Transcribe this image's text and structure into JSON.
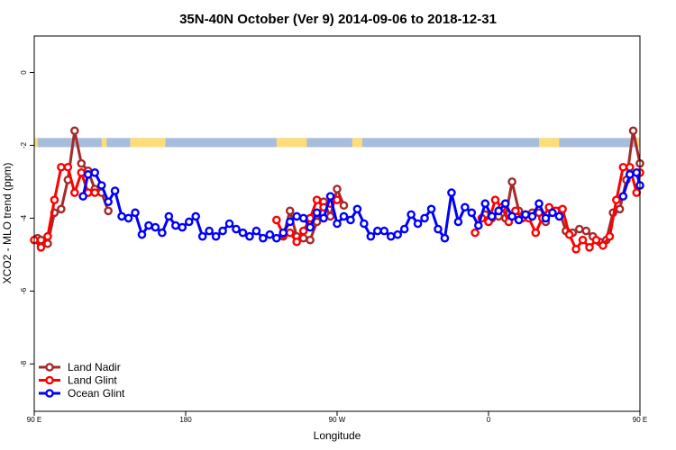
{
  "chart_data": {
    "type": "line",
    "title": "35N-40N October (Ver 9)   2014-09-06 to 2018-12-31",
    "xlabel": "Longitude",
    "ylabel": "XCO2 - MLO trend (ppm)",
    "xlim": [
      90,
      450
    ],
    "ylim": [
      -9.3,
      1
    ],
    "x_ticks": [
      {
        "value": 90,
        "label": "90 E"
      },
      {
        "value": 180,
        "label": "180"
      },
      {
        "value": 270,
        "label": "90 W"
      },
      {
        "value": 360,
        "label": "0"
      },
      {
        "value": 450,
        "label": "90 E"
      },
      {
        "value": 540,
        "label": "180"
      }
    ],
    "y_ticks": [
      {
        "value": 0,
        "label": "0"
      },
      {
        "value": -2,
        "label": "-2"
      },
      {
        "value": -4,
        "label": "-4"
      },
      {
        "value": -6,
        "label": "-6"
      },
      {
        "value": -8,
        "label": "-8"
      }
    ],
    "land_ocean_band": {
      "y_range": [
        -2.05,
        -1.8
      ],
      "ocean_color": "#a6bddb",
      "land_color": "#fddc7a",
      "land_segments": [
        [
          90,
          92
        ],
        [
          130,
          133
        ],
        [
          147,
          168
        ],
        [
          234,
          252
        ],
        [
          279,
          285
        ],
        [
          390,
          402
        ],
        [
          448,
          450
        ]
      ]
    },
    "legend": {
      "position": "bottom-left",
      "entries": [
        {
          "name": "Land Nadir",
          "color": "#a52a2a"
        },
        {
          "name": "Land Glint",
          "color": "#ff0000"
        },
        {
          "name": "Ocean Glint",
          "color": "#0000ff"
        }
      ]
    },
    "series": [
      {
        "name": "Land Nadir",
        "color": "#a52a2a",
        "segments": [
          [
            [
              92,
              -4.55
            ],
            [
              94,
              -4.6
            ],
            [
              98,
              -4.7
            ],
            [
              102,
              -3.85
            ],
            [
              106,
              -3.75
            ],
            [
              110,
              -2.95
            ],
            [
              114,
              -1.6
            ],
            [
              118,
              -2.5
            ],
            [
              122,
              -2.7
            ],
            [
              126,
              -3.2
            ],
            [
              130,
              -3.3
            ],
            [
              134,
              -3.8
            ]
          ],
          [
            [
              238,
              -4.5
            ],
            [
              242,
              -3.8
            ],
            [
              246,
              -4.5
            ],
            [
              250,
              -4.55
            ],
            [
              254,
              -4.6
            ],
            [
              258,
              -4.1
            ],
            [
              262,
              -3.55
            ],
            [
              266,
              -3.95
            ],
            [
              270,
              -3.2
            ],
            [
              274,
              -3.65
            ]
          ],
          [
            [
              358,
              -3.9
            ],
            [
              362,
              -4.0
            ],
            [
              366,
              -3.95
            ],
            [
              370,
              -4.0
            ],
            [
              374,
              -3.0
            ],
            [
              378,
              -3.8
            ],
            [
              382,
              -3.9
            ],
            [
              386,
              -3.85
            ],
            [
              390,
              -3.85
            ],
            [
              394,
              -4.1
            ],
            [
              398,
              -3.8
            ],
            [
              402,
              -3.8
            ],
            [
              406,
              -4.35
            ],
            [
              410,
              -4.4
            ],
            [
              414,
              -4.3
            ],
            [
              418,
              -4.35
            ],
            [
              422,
              -4.5
            ],
            [
              426,
              -4.65
            ],
            [
              430,
              -4.6
            ],
            [
              434,
              -3.85
            ],
            [
              438,
              -3.75
            ],
            [
              442,
              -2.95
            ],
            [
              446,
              -1.6
            ],
            [
              450,
              -2.5
            ]
          ]
        ]
      },
      {
        "name": "Land Glint",
        "color": "#ff0000",
        "segments": [
          [
            [
              90,
              -4.6
            ],
            [
              94,
              -4.8
            ],
            [
              98,
              -4.5
            ],
            [
              102,
              -3.5
            ],
            [
              106,
              -2.6
            ],
            [
              110,
              -2.6
            ],
            [
              114,
              -3.3
            ],
            [
              118,
              -2.75
            ],
            [
              122,
              -3.3
            ],
            [
              126,
              -3.3
            ]
          ],
          [
            [
              234,
              -4.05
            ],
            [
              238,
              -4.45
            ],
            [
              242,
              -4.4
            ],
            [
              246,
              -4.65
            ],
            [
              250,
              -4.35
            ],
            [
              254,
              -4.0
            ],
            [
              258,
              -3.5
            ],
            [
              262,
              -3.7
            ],
            [
              266,
              -3.6
            ],
            [
              270,
              -3.5
            ]
          ],
          [
            [
              352,
              -4.4
            ],
            [
              356,
              -4.0
            ],
            [
              360,
              -4.1
            ],
            [
              364,
              -3.5
            ],
            [
              368,
              -3.7
            ],
            [
              372,
              -4.1
            ],
            [
              376,
              -3.8
            ],
            [
              380,
              -4.0
            ],
            [
              384,
              -4.0
            ],
            [
              388,
              -4.4
            ],
            [
              392,
              -4.0
            ],
            [
              396,
              -3.7
            ],
            [
              400,
              -3.8
            ],
            [
              404,
              -3.75
            ],
            [
              408,
              -4.45
            ],
            [
              412,
              -4.85
            ],
            [
              416,
              -4.6
            ],
            [
              420,
              -4.8
            ],
            [
              424,
              -4.6
            ],
            [
              428,
              -4.75
            ],
            [
              432,
              -4.5
            ],
            [
              436,
              -3.5
            ],
            [
              440,
              -2.6
            ],
            [
              444,
              -2.6
            ],
            [
              448,
              -3.3
            ],
            [
              450,
              -2.75
            ]
          ]
        ]
      },
      {
        "name": "Ocean Glint",
        "color": "#0000ff",
        "segments": [
          [
            [
              119,
              -3.4
            ],
            [
              122,
              -2.8
            ],
            [
              126,
              -2.75
            ],
            [
              130,
              -3.1
            ],
            [
              134,
              -3.55
            ],
            [
              138,
              -3.25
            ],
            [
              142,
              -3.95
            ],
            [
              146,
              -4.0
            ],
            [
              150,
              -3.85
            ],
            [
              154,
              -4.45
            ],
            [
              158,
              -4.2
            ],
            [
              162,
              -4.25
            ],
            [
              166,
              -4.4
            ],
            [
              170,
              -3.95
            ],
            [
              174,
              -4.2
            ],
            [
              178,
              -4.25
            ],
            [
              182,
              -4.1
            ],
            [
              186,
              -3.95
            ],
            [
              190,
              -4.5
            ],
            [
              194,
              -4.35
            ],
            [
              198,
              -4.5
            ],
            [
              202,
              -4.35
            ],
            [
              206,
              -4.15
            ],
            [
              210,
              -4.3
            ],
            [
              214,
              -4.4
            ],
            [
              218,
              -4.5
            ],
            [
              222,
              -4.35
            ],
            [
              226,
              -4.55
            ],
            [
              230,
              -4.45
            ],
            [
              234,
              -4.55
            ],
            [
              238,
              -4.4
            ],
            [
              242,
              -4.1
            ],
            [
              246,
              -3.95
            ],
            [
              250,
              -4.0
            ],
            [
              254,
              -4.25
            ],
            [
              258,
              -3.85
            ],
            [
              262,
              -4.0
            ],
            [
              266,
              -3.4
            ],
            [
              270,
              -4.15
            ],
            [
              274,
              -3.95
            ],
            [
              278,
              -4.05
            ],
            [
              282,
              -3.75
            ],
            [
              286,
              -4.15
            ],
            [
              290,
              -4.5
            ],
            [
              294,
              -4.35
            ],
            [
              298,
              -4.35
            ],
            [
              302,
              -4.5
            ],
            [
              306,
              -4.45
            ],
            [
              310,
              -4.3
            ],
            [
              314,
              -3.9
            ],
            [
              318,
              -4.15
            ],
            [
              322,
              -4.0
            ],
            [
              326,
              -3.75
            ],
            [
              330,
              -4.3
            ],
            [
              334,
              -4.55
            ],
            [
              338,
              -3.3
            ],
            [
              342,
              -4.1
            ],
            [
              346,
              -3.7
            ],
            [
              350,
              -3.85
            ],
            [
              354,
              -4.2
            ],
            [
              358,
              -3.6
            ],
            [
              362,
              -3.95
            ],
            [
              366,
              -3.8
            ],
            [
              370,
              -3.6
            ],
            [
              374,
              -3.95
            ],
            [
              378,
              -4.05
            ],
            [
              382,
              -3.9
            ],
            [
              386,
              -3.95
            ],
            [
              390,
              -3.6
            ],
            [
              394,
              -4.0
            ],
            [
              398,
              -3.85
            ],
            [
              402,
              -3.95
            ]
          ],
          [
            [
              440,
              -3.4
            ],
            [
              444,
              -2.8
            ],
            [
              448,
              -2.75
            ],
            [
              450,
              -3.1
            ]
          ]
        ]
      }
    ]
  }
}
